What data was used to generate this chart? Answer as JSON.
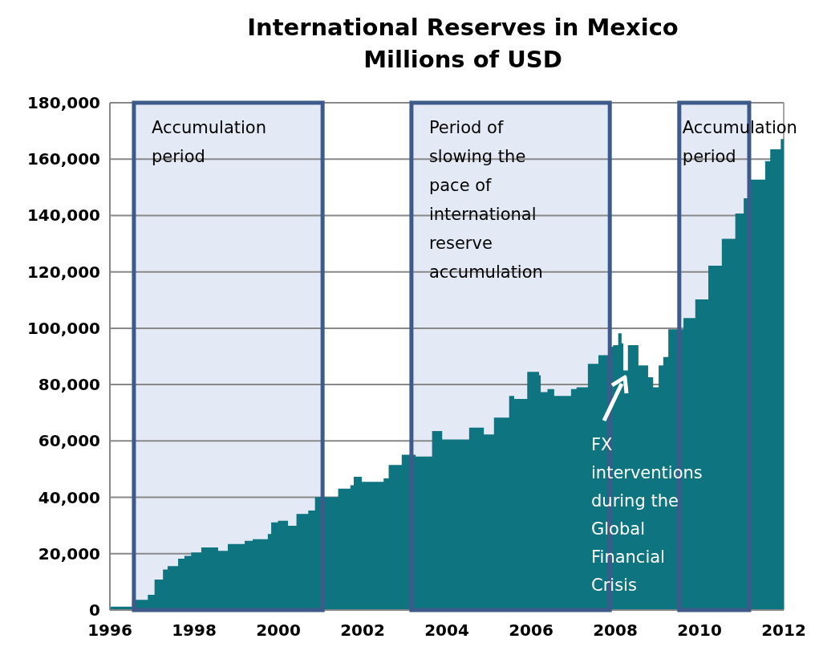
{
  "chart_data": {
    "type": "area",
    "title": "International Reserves in Mexico",
    "subtitle": "Millions of USD",
    "x": [
      1996.0,
      1996.3,
      1996.53,
      1996.9,
      1997.06,
      1997.26,
      1997.37,
      1997.62,
      1997.77,
      1997.93,
      1998.17,
      1998.49,
      1998.57,
      1998.8,
      1999.2,
      1999.39,
      1999.75,
      1999.83,
      1999.99,
      2000.23,
      2000.43,
      2000.71,
      2000.87,
      2001.42,
      2001.71,
      2001.79,
      2001.98,
      2002.5,
      2002.62,
      2002.93,
      2003.26,
      2003.65,
      2003.89,
      2004.25,
      2004.53,
      2004.88,
      2005.12,
      2005.48,
      2005.6,
      2005.91,
      2006.19,
      2006.23,
      2006.39,
      2006.55,
      2006.95,
      2007.08,
      2007.35,
      2007.6,
      2007.83,
      2007.95,
      2008.07,
      2008.15,
      2008.19,
      2008.3,
      2008.55,
      2008.78,
      2008.9,
      2009.03,
      2009.14,
      2009.26,
      2009.46,
      2009.62,
      2009.9,
      2010.21,
      2010.53,
      2010.85,
      2011.05,
      2011.16,
      2011.56,
      2011.68,
      2011.93,
      2012.0
    ],
    "series": [
      {
        "color": "#0e7480",
        "values": [
          1200,
          1200,
          3600,
          5400,
          10800,
          14400,
          15600,
          18200,
          19200,
          20400,
          22200,
          22200,
          21000,
          23400,
          24600,
          25100,
          27000,
          31100,
          31700,
          29900,
          34100,
          35300,
          40100,
          43100,
          44300,
          47300,
          45500,
          46700,
          51500,
          55100,
          54500,
          63500,
          60500,
          60500,
          64700,
          62300,
          68300,
          76000,
          74900,
          84500,
          83300,
          77300,
          78400,
          76000,
          78400,
          79000,
          87400,
          90400,
          93400,
          94000,
          98200,
          94600,
          85000,
          94000,
          86800,
          82600,
          79000,
          86800,
          89800,
          99600,
          99600,
          103600,
          110200,
          122200,
          131700,
          140700,
          146100,
          152700,
          159300,
          163500,
          167100,
          167100
        ]
      }
    ],
    "xlim": [
      1996,
      2012
    ],
    "xticks": [
      1996,
      1998,
      2000,
      2002,
      2004,
      2006,
      2008,
      2010,
      2012
    ],
    "ylim": [
      0,
      180000
    ],
    "yticks": [
      {
        "value": 0,
        "label": "0"
      },
      {
        "value": 20000,
        "label": "20,000"
      },
      {
        "value": 40000,
        "label": "40,000"
      },
      {
        "value": 60000,
        "label": "60,000"
      },
      {
        "value": 80000,
        "label": "80,000"
      },
      {
        "value": 100000,
        "label": "100,000"
      },
      {
        "value": 120000,
        "label": "120,000"
      },
      {
        "value": 140000,
        "label": "140,000"
      },
      {
        "value": 160000,
        "label": "160,000"
      },
      {
        "value": 180000,
        "label": "180,000"
      }
    ],
    "grid": "y",
    "bands": [
      {
        "axis": "x",
        "from": 1996.57,
        "to": 2001.05,
        "label": "Accumulation period",
        "color": "#e4eaf5"
      },
      {
        "axis": "x",
        "from": 2003.16,
        "to": 2007.87,
        "label": "Period of slowing the pace of international reserve accumulation",
        "color": "#e4eaf5"
      },
      {
        "axis": "x",
        "from": 2009.52,
        "to": 2011.18,
        "label": "Accumulation period",
        "color": "#e4eaf5"
      }
    ],
    "annotations": [
      "FX interventions during the Global Financial Crisis"
    ]
  }
}
